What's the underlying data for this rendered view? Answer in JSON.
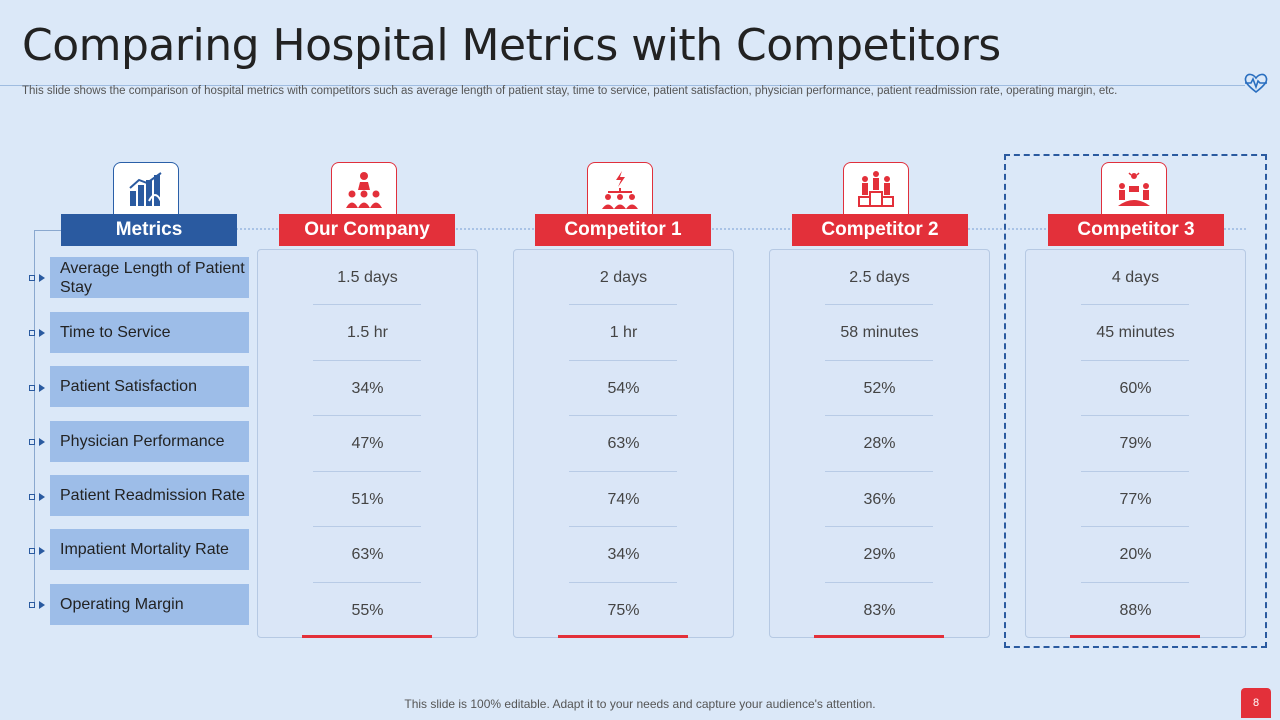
{
  "slide": {
    "title": "Comparing Hospital Metrics with Competitors",
    "subtitle": "This slide shows the comparison of hospital metrics with competitors such as average length of patient stay, time to  service, patient satisfaction, physician performance, patient readmission rate, operating margin, etc.",
    "footer": "This slide is 100% editable. Adapt it to your needs and capture your audience's attention.",
    "page_number": "8"
  },
  "colors": {
    "blue": "#2a5aa0",
    "red": "#e3303a",
    "background": "#dbe8f8",
    "metric_fill": "#9dbde8"
  },
  "headers": {
    "metrics": "Metrics",
    "our_company": "Our Company",
    "competitor1": "Competitor 1",
    "competitor2": "Competitor 2",
    "competitor3": "Competitor 3"
  },
  "metrics": [
    "Average Length of Patient Stay",
    "Time to Service",
    "Patient Satisfaction",
    "Physician Performance",
    "Patient Readmission Rate",
    "Impatient Mortality Rate",
    "Operating Margin"
  ],
  "columns": {
    "our_company": [
      "1.5 days",
      "1.5 hr",
      "34%",
      "47%",
      "51%",
      "63%",
      "55%"
    ],
    "competitor1": [
      "2 days",
      "1 hr",
      "54%",
      "63%",
      "74%",
      "34%",
      "75%"
    ],
    "competitor2": [
      "2.5 days",
      "58 minutes",
      "52%",
      "28%",
      "36%",
      "29%",
      "83%"
    ],
    "competitor3": [
      "4 days",
      "45 minutes",
      "60%",
      "79%",
      "77%",
      "20%",
      "88%"
    ]
  },
  "icons": {
    "title_accent": "heartbeat-icon",
    "metrics": "bar-chart-icon",
    "our_company": "team-icon",
    "competitor1": "org-chart-icon",
    "competitor2": "podium-icon",
    "competitor3": "competition-icon"
  }
}
